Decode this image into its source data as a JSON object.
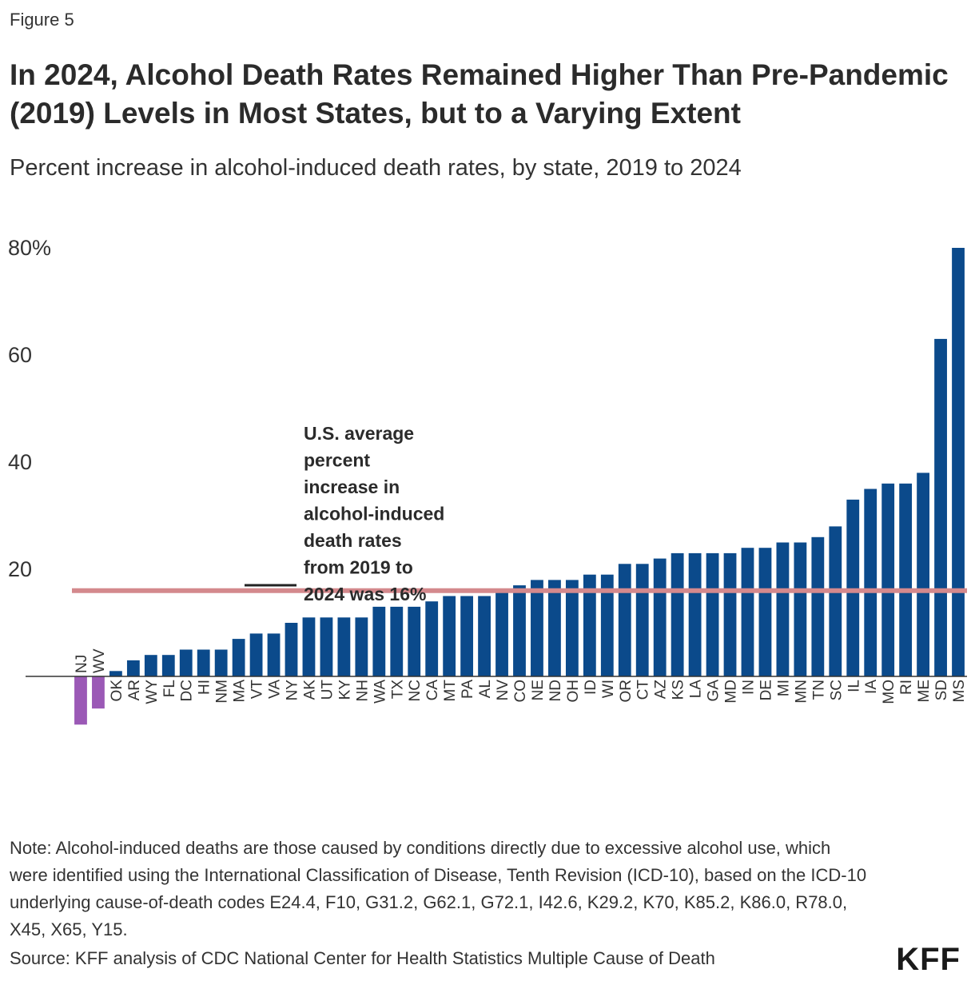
{
  "figure_label": "Figure 5",
  "note": "Note: Alcohol-induced deaths are those caused by conditions directly due to excessive alcohol use, which were identified using the International Classification of Disease, Tenth Revision (ICD-10), based on the ICD-10 underlying cause-of-death codes E24.4, F10, G31.2, G62.1, G72.1, I42.6, K29.2, K70, K85.2, K86.0, R78.0, X45, X65, Y15.",
  "source": "Source: KFF analysis of CDC National Center for Health Statistics Multiple Cause of Death",
  "logo": "KFF",
  "colors": {
    "positive": "#0b4a8b",
    "negative": "#9b59b6",
    "average_line": "#d4898d"
  },
  "chart_data": {
    "type": "bar",
    "title": "In 2024, Alcohol Death Rates Remained Higher Than Pre-Pandemic (2019) Levels in Most States, but to a Varying Extent",
    "subtitle": "Percent increase in alcohol-induced death rates, by state, 2019 to 2024",
    "xlabel": "",
    "ylabel": "",
    "ylim": [
      -10,
      80
    ],
    "y_ticks": [
      "80%",
      "60",
      "40",
      "20"
    ],
    "y_tick_values": [
      80,
      60,
      40,
      20
    ],
    "categories": [
      "NJ",
      "WV",
      "OK",
      "AR",
      "WY",
      "FL",
      "DC",
      "HI",
      "NM",
      "MA",
      "VT",
      "VA",
      "NY",
      "AK",
      "UT",
      "KY",
      "NH",
      "WA",
      "TX",
      "NC",
      "CA",
      "MT",
      "PA",
      "AL",
      "NV",
      "CO",
      "NE",
      "ND",
      "OH",
      "ID",
      "WI",
      "OR",
      "CT",
      "AZ",
      "KS",
      "LA",
      "GA",
      "MD",
      "IN",
      "DE",
      "MI",
      "MN",
      "TN",
      "SC",
      "IL",
      "IA",
      "MO",
      "RI",
      "ME",
      "SD",
      "MS"
    ],
    "values": [
      -9,
      -6,
      1,
      3,
      4,
      4,
      5,
      5,
      5,
      7,
      8,
      8,
      10,
      11,
      11,
      11,
      11,
      13,
      13,
      13,
      14,
      15,
      15,
      15,
      16,
      17,
      18,
      18,
      18,
      19,
      19,
      21,
      21,
      22,
      23,
      23,
      23,
      23,
      24,
      24,
      25,
      25,
      26,
      28,
      33,
      35,
      36,
      36,
      38,
      63,
      80
    ],
    "average": 16,
    "annotation": [
      "U.S. average",
      "percent",
      "increase in",
      "alcohol-induced",
      "death rates",
      "from 2019 to",
      "2024 was 16%"
    ],
    "grid": false,
    "legend": "none"
  }
}
